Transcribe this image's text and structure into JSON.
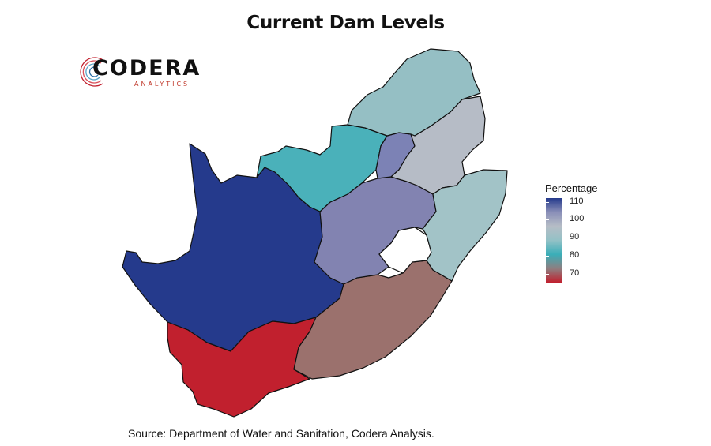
{
  "title": "Current Dam Levels",
  "logo": {
    "name": "CODERA",
    "subtitle": "ANALYTICS"
  },
  "legend": {
    "title": "Percentage",
    "ticks": [
      "110",
      "100",
      "90",
      "80",
      "70"
    ],
    "tick_values": [
      110,
      100,
      90,
      80,
      70
    ],
    "range": [
      65,
      112
    ],
    "gradient": [
      "#253a8c",
      "#8a8fb8",
      "#b6bdc6",
      "#93c1c6",
      "#3aaeb8",
      "#8e7e80",
      "#c1202e"
    ]
  },
  "regions": [
    {
      "name": "Northern Cape",
      "color": "#253a8c",
      "level": 110
    },
    {
      "name": "Western Cape",
      "color": "#c1202e",
      "level": 65
    },
    {
      "name": "Eastern Cape",
      "color": "#9b716d",
      "level": 73
    },
    {
      "name": "Free State",
      "color": "#8283b1",
      "level": 103
    },
    {
      "name": "North West",
      "color": "#4ab1ba",
      "level": 82
    },
    {
      "name": "Gauteng",
      "color": "#7c82b5",
      "level": 104
    },
    {
      "name": "Limpopo",
      "color": "#95bfc4",
      "level": 90
    },
    {
      "name": "Mpumalanga",
      "color": "#b6bcc6",
      "level": 96
    },
    {
      "name": "KwaZulu-Natal",
      "color": "#a2c3c7",
      "level": 92
    }
  ],
  "source": "Source: Department of Water and Sanitation, Codera Analysis."
}
